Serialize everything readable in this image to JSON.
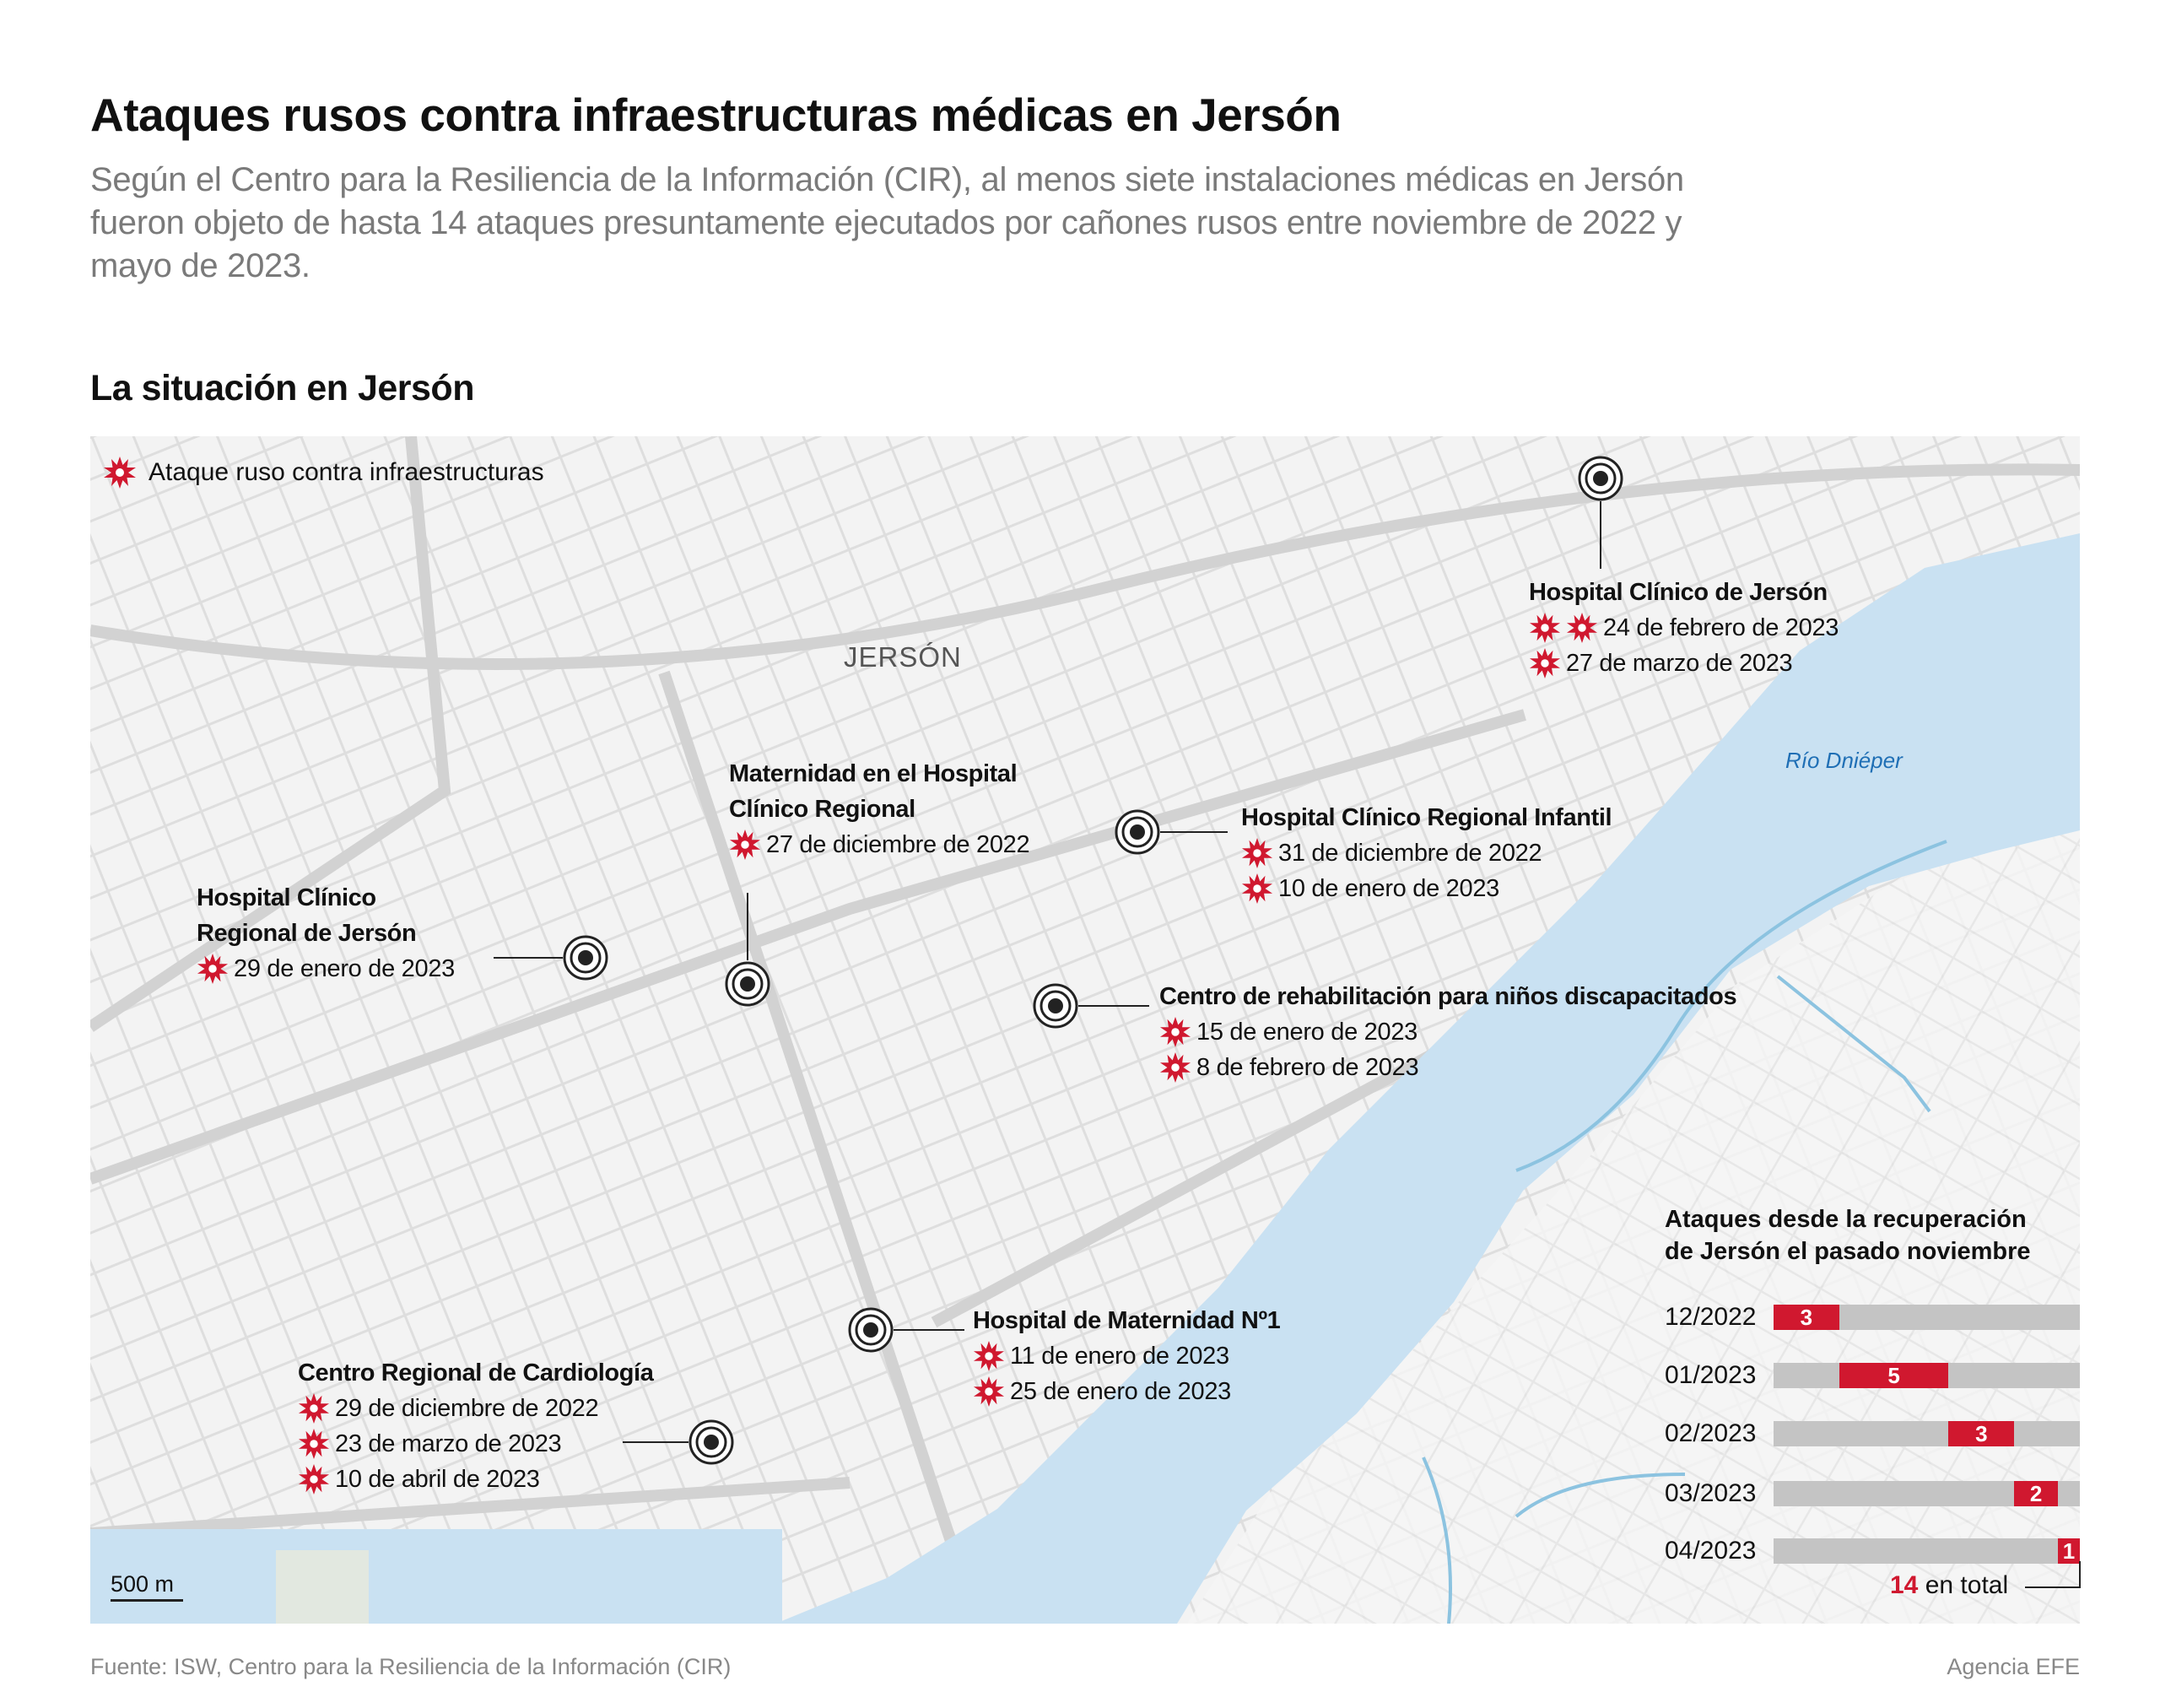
{
  "header": {
    "title": "Ataques rusos contra infraestructuras médicas en Jersón",
    "subtitle": "Según el Centro para la Resiliencia de la Información (CIR), al menos siete instalaciones médicas en Jersón fueron objeto de hasta 14 ataques presuntamente ejecutados por cañones rusos entre noviembre de 2022 y mayo de 2023.",
    "section": "La situación en Jersón"
  },
  "legend": {
    "icon": "explosion-star-icon",
    "label": "Ataque ruso contra infraestructuras"
  },
  "map": {
    "city_label": "JERSÓN",
    "river_label": "Río Dniéper",
    "scale_label": "500 m",
    "colors": {
      "attack": "#d0182f",
      "water": "#c9e1f2",
      "land": "#f2f2f2",
      "streets": "#dcdcdc"
    }
  },
  "hospitals": [
    {
      "name": [
        "Hospital Clínico de Jersón"
      ],
      "dates": [
        {
          "stars": 2,
          "text": "24 de febrero de 2023"
        },
        {
          "stars": 1,
          "text": "27 de marzo de 2023"
        }
      ]
    },
    {
      "name": [
        "Maternidad en el Hospital",
        "Clínico Regional"
      ],
      "dates": [
        {
          "stars": 1,
          "text": "27 de diciembre de 2022"
        }
      ]
    },
    {
      "name": [
        "Hospital Clínico Regional Infantil"
      ],
      "dates": [
        {
          "stars": 1,
          "text": "31 de diciembre de 2022"
        },
        {
          "stars": 1,
          "text": "10 de enero de 2023"
        }
      ]
    },
    {
      "name": [
        "Hospital Clínico",
        "Regional de Jersón"
      ],
      "dates": [
        {
          "stars": 1,
          "text": "29 de enero de 2023"
        }
      ]
    },
    {
      "name": [
        "Centro de rehabilitación para niños discapacitados"
      ],
      "dates": [
        {
          "stars": 1,
          "text": "15 de enero de 2023"
        },
        {
          "stars": 1,
          "text": "8 de febrero de 2023"
        }
      ]
    },
    {
      "name": [
        "Hospital de Maternidad Nº1"
      ],
      "dates": [
        {
          "stars": 1,
          "text": "11 de enero de 2023"
        },
        {
          "stars": 1,
          "text": "25 de enero de 2023"
        }
      ]
    },
    {
      "name": [
        "Centro Regional de Cardiología"
      ],
      "dates": [
        {
          "stars": 1,
          "text": "29 de diciembre de 2022"
        },
        {
          "stars": 1,
          "text": "23 de marzo de 2023"
        },
        {
          "stars": 1,
          "text": "10 de abril de 2023"
        }
      ]
    }
  ],
  "chart_data": {
    "type": "bar",
    "title": "Ataques desde la recuperación de Jersón el pasado noviembre",
    "title_lines": [
      "Ataques desde la recuperación",
      "de Jersón el pasado noviembre"
    ],
    "categories": [
      "12/2022",
      "01/2023",
      "02/2023",
      "03/2023",
      "04/2023"
    ],
    "values": [
      3,
      5,
      3,
      2,
      1
    ],
    "xlim": [
      0,
      14
    ],
    "stacked_cumulative": true,
    "total": {
      "value": "14",
      "label": "en total"
    },
    "colors": {
      "bar": "#d0182f",
      "track": "#c4c4c4"
    }
  },
  "footer": {
    "source": "Fuente: ISW, Centro para la Resiliencia de la Información (CIR)",
    "credit": "Agencia EFE"
  }
}
